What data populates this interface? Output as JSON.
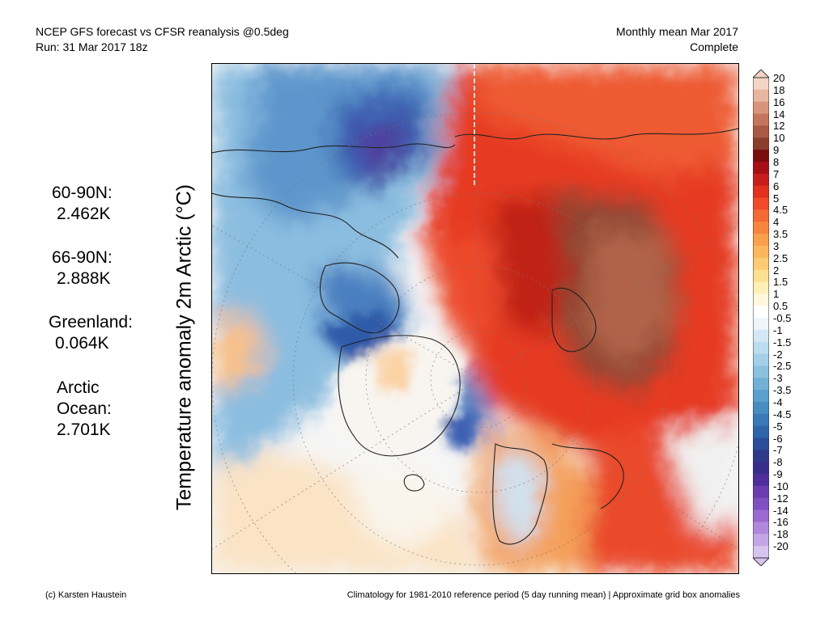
{
  "header": {
    "title": "NCEP GFS forecast vs CFSR reanalysis @0.5deg",
    "run": "Run: 31 Mar 2017 18z",
    "period": "Monthly mean Mar 2017",
    "status": "Complete"
  },
  "ylabel": "Temperature anomaly 2m Arctic (°C)",
  "stats": [
    {
      "label": "60-90N:",
      "value": "2.462K"
    },
    {
      "label": "66-90N:",
      "value": "2.888K"
    },
    {
      "label": "Greenland:",
      "value": "0.064K"
    },
    {
      "label": "Arctic Ocean:",
      "value": "2.701K"
    }
  ],
  "colorbar": {
    "labels": [
      "20",
      "18",
      "16",
      "14",
      "12",
      "10",
      "9",
      "8",
      "7",
      "6",
      "5",
      "4.5",
      "4",
      "3.5",
      "3",
      "2.5",
      "2",
      "1.5",
      "1",
      "0.5",
      "-0.5",
      "-1",
      "-1.5",
      "-2",
      "-2.5",
      "-3",
      "-3.5",
      "-4",
      "-4.5",
      "-5",
      "-6",
      "-7",
      "-8",
      "-9",
      "-10",
      "-12",
      "-14",
      "-16",
      "-18",
      "-20"
    ],
    "colors": [
      "#f4d4c4",
      "#e8b59e",
      "#d9957c",
      "#c4765c",
      "#a85a44",
      "#8c3e2c",
      "#7a0c0c",
      "#a50f15",
      "#c81d1d",
      "#e0301e",
      "#f04a2a",
      "#f46a34",
      "#f7853e",
      "#f9a04a",
      "#fbb75c",
      "#fccb74",
      "#fde08f",
      "#feefb6",
      "#fff8dc",
      "#ffffff",
      "#eef6fb",
      "#d3e8f4",
      "#bcdcef",
      "#a3cfe8",
      "#8bc0df",
      "#72b0d6",
      "#5b9fcc",
      "#488dc2",
      "#3a79b6",
      "#2e64a8",
      "#2a4e98",
      "#2d3a8a",
      "#3a2c8a",
      "#4f2e9a",
      "#6a3cb0",
      "#8050c0",
      "#9a6ad0",
      "#b088dc",
      "#c4a6e6",
      "#d8c4f0"
    ]
  },
  "footer": {
    "left": "(c) Karsten Haustein",
    "right": "Climatology for 1981-2010 reference period (5 day running mean) | Approximate grid box anomalies"
  }
}
